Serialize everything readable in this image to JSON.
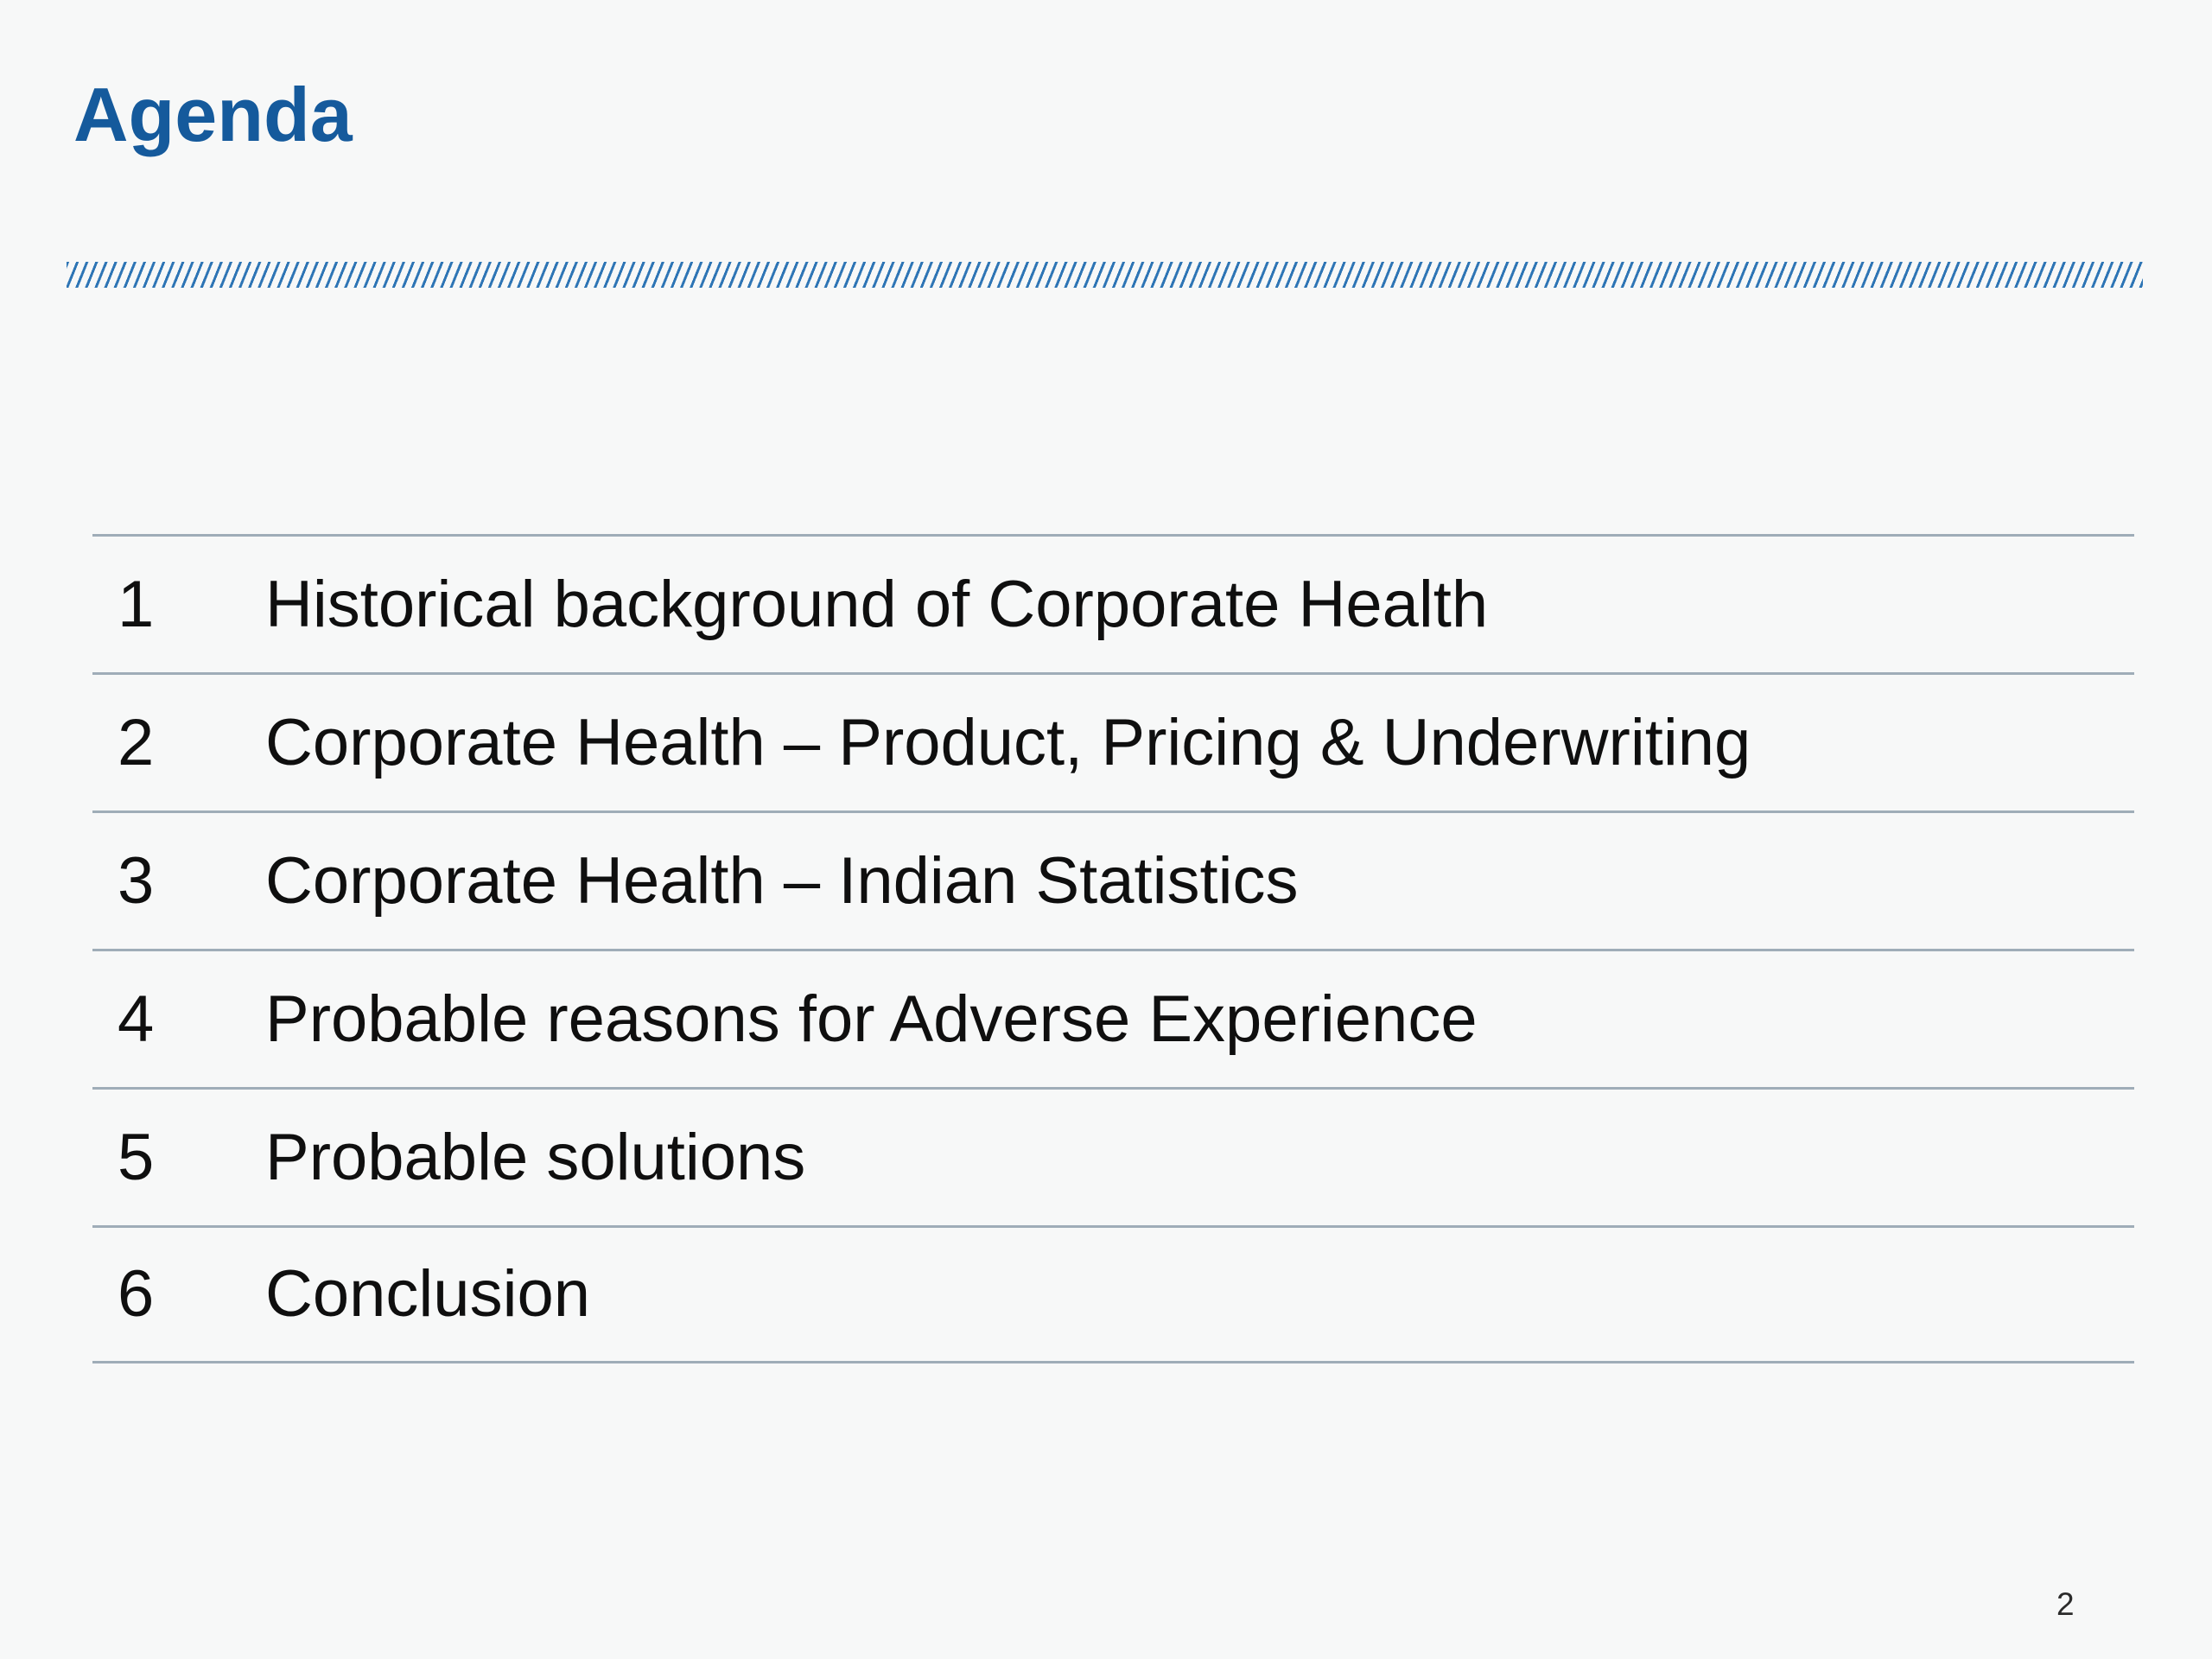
{
  "slide": {
    "title": "Agenda",
    "page_number": "2"
  },
  "agenda": {
    "items": [
      {
        "num": "1",
        "label": "Historical background of Corporate Health"
      },
      {
        "num": "2",
        "label": "Corporate Health – Product, Pricing & Underwriting"
      },
      {
        "num": "3",
        "label": "Corporate Health – Indian Statistics"
      },
      {
        "num": "4",
        "label": "Probable reasons for Adverse Experience"
      },
      {
        "num": "5",
        "label": "Probable solutions"
      },
      {
        "num": "6",
        "label": "Conclusion"
      }
    ]
  },
  "colors": {
    "title_blue": "#155a9c",
    "hatch_blue": "#2e75b5",
    "divider_gray": "#9fadb8",
    "background": "#f7f8f8",
    "body_text": "#0f0f0f"
  }
}
